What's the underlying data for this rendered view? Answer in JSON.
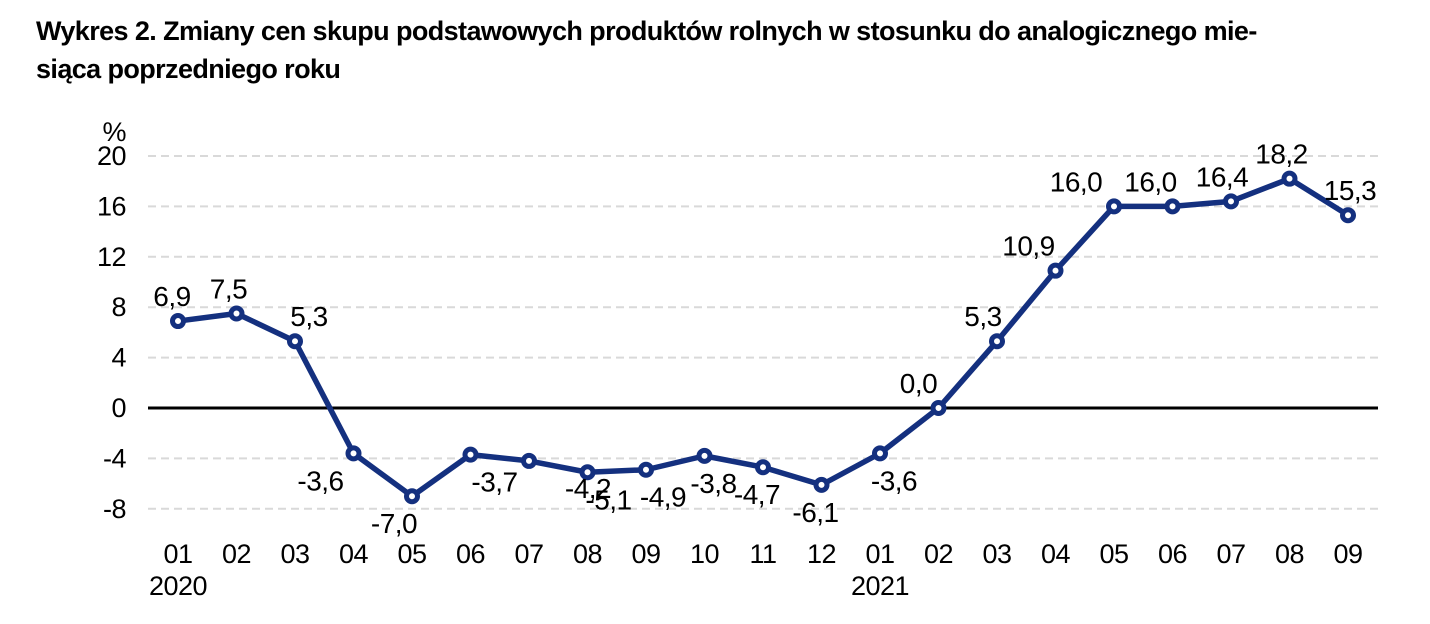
{
  "title": {
    "line1": "Wykres 2. Zmiany cen skupu podstawowych produktów rolnych w stosunku do analogicznego mie-",
    "line2": "siąca poprzedniego roku"
  },
  "chart_data": {
    "type": "line",
    "title": "Wykres 2. Zmiany cen skupu podstawowych produktów rolnych w stosunku do analogicznego miesiąca poprzedniego roku",
    "ylabel": "%",
    "categories": [
      "01",
      "02",
      "03",
      "04",
      "05",
      "06",
      "07",
      "08",
      "09",
      "10",
      "11",
      "12",
      "01",
      "02",
      "03",
      "04",
      "05",
      "06",
      "07",
      "08",
      "09"
    ],
    "years": [
      {
        "index": 0,
        "label": "2020"
      },
      {
        "index": 12,
        "label": "2021"
      }
    ],
    "values": [
      6.9,
      7.5,
      5.3,
      -3.6,
      -7.0,
      -3.7,
      -4.2,
      -5.1,
      -4.9,
      -3.8,
      -4.7,
      -6.1,
      -3.6,
      0.0,
      5.3,
      10.9,
      16.0,
      16.0,
      16.4,
      18.2,
      15.3
    ],
    "value_labels": [
      "6,9",
      "7,5",
      "5,3",
      "-3,6",
      "-7,0",
      "-3,7",
      "-4,2",
      "-5,1",
      "-4,9",
      "-3,8",
      "-4,7",
      "-6,1",
      "-3,6",
      "0,0",
      "5,3",
      "10,9",
      "16,0",
      "16,0",
      "16,4",
      "18,2",
      "15,3"
    ],
    "yticks": [
      20,
      16,
      12,
      8,
      4,
      0,
      -4,
      -8
    ],
    "ylim": [
      -8,
      20
    ],
    "grid": "horizontal-dashed",
    "legend": "none",
    "zero_line": true,
    "line_color": "#14307f",
    "marker_fill": "#ffffff",
    "grid_color": "#d9d9d9",
    "zero_line_color": "#000000",
    "text_color": "#000000",
    "label_dx": [
      -6,
      -8,
      14,
      -33,
      -18,
      24,
      59,
      21,
      17,
      9,
      -6,
      -6,
      14,
      -20,
      -14,
      -27,
      -38,
      -22,
      -9,
      -8,
      2
    ]
  }
}
